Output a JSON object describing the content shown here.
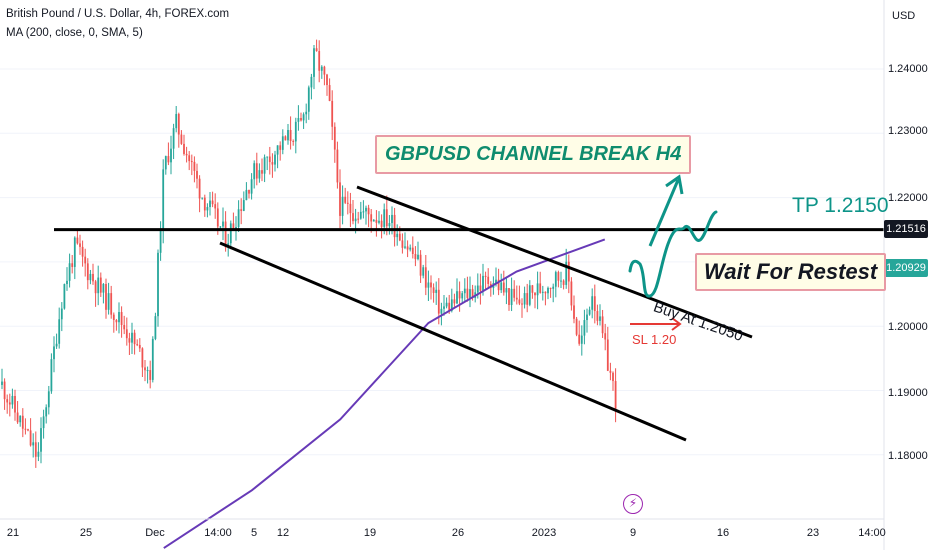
{
  "header": {
    "symbol_title": "British Pound / U.S. Dollar, 4h, FOREX.com",
    "indicator_title": "MA (200, close, 0, SMA, 5)"
  },
  "price_axis": {
    "currency": "USD",
    "ticks": [
      "1.24000",
      "1.23000",
      "1.22000",
      "1.21000",
      "1.20000",
      "1.19000",
      "1.18000"
    ]
  },
  "time_axis": {
    "ticks": [
      "21",
      "25",
      "Dec",
      "14:00",
      "5",
      "12",
      "19",
      "26",
      "2023",
      "9",
      "16",
      "23",
      "14:00"
    ]
  },
  "price_labels": {
    "level": "1.21516",
    "last": "1.20929"
  },
  "annotations": {
    "title": "GBPUSD CHANNEL BREAK H4",
    "take_profit": "TP 1.2150",
    "wait": "Wait For Restest",
    "buy": "Buy At 1.2050",
    "stop_loss": "SL 1.20"
  },
  "event_icon": "lightning-icon",
  "colors": {
    "up": "#26a69a",
    "down": "#ef5350",
    "ma": "#673ab7",
    "projection": "#0d9488",
    "level_tag": "#131722",
    "last_tag": "#26a69a"
  },
  "chart_data": {
    "type": "candlestick",
    "symbol": "GBPUSD",
    "timeframe": "4h",
    "y_axis": {
      "range": [
        1.1725,
        1.2495
      ],
      "ticks": [
        1.18,
        1.19,
        1.2,
        1.21,
        1.22,
        1.23,
        1.24
      ]
    },
    "price_path": [
      {
        "x": "Nov 18",
        "y": 1.1915
      },
      {
        "x": "Nov 21",
        "y": 1.1795
      },
      {
        "x": "Nov 23",
        "y": 1.2055
      },
      {
        "x": "Nov 24",
        "y": 1.2125
      },
      {
        "x": "Nov 25",
        "y": 1.2085
      },
      {
        "x": "Nov 28",
        "y": 1.1995
      },
      {
        "x": "Nov 30",
        "y": 1.1925
      },
      {
        "x": "Dec 1",
        "y": 1.2245
      },
      {
        "x": "Dec 2",
        "y": 1.2315
      },
      {
        "x": "Dec 4",
        "y": 1.2205
      },
      {
        "x": "Dec 6",
        "y": 1.2135
      },
      {
        "x": "Dec 8",
        "y": 1.2235
      },
      {
        "x": "Dec 12",
        "y": 1.2315
      },
      {
        "x": "Dec 13",
        "y": 1.2425
      },
      {
        "x": "Dec 14",
        "y": 1.2365
      },
      {
        "x": "Dec 15",
        "y": 1.2185
      },
      {
        "x": "Dec 19",
        "y": 1.2165
      },
      {
        "x": "Dec 21",
        "y": 1.2105
      },
      {
        "x": "Dec 23",
        "y": 1.2025
      },
      {
        "x": "Dec 27",
        "y": 1.2075
      },
      {
        "x": "Dec 29",
        "y": 1.2035
      },
      {
        "x": "Jan 2",
        "y": 1.2085
      },
      {
        "x": "Jan 3",
        "y": 1.1965
      },
      {
        "x": "Jan 4",
        "y": 1.2055
      },
      {
        "x": "Jan 6",
        "y": 1.1875
      },
      {
        "x": "Jan 6",
        "y": 1.2095
      }
    ],
    "moving_average": {
      "name": "MA (200, close, 0, SMA, 5)",
      "points": [
        {
          "x": "Dec 1",
          "y": 1.1655
        },
        {
          "x": "Dec 8",
          "y": 1.1745
        },
        {
          "x": "Dec 15",
          "y": 1.1855
        },
        {
          "x": "Dec 22",
          "y": 1.2005
        },
        {
          "x": "Dec 29",
          "y": 1.2085
        },
        {
          "x": "Jan 5",
          "y": 1.2135
        }
      ]
    },
    "horizontal_levels": [
      1.21516
    ],
    "last_price": 1.20929
  }
}
